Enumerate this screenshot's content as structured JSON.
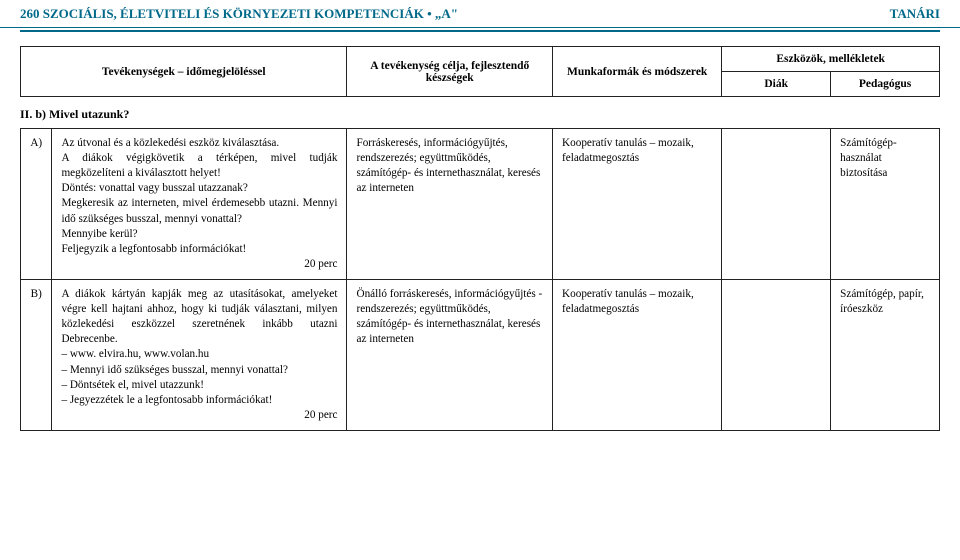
{
  "header": {
    "page_num": "260",
    "title_left": "SZOCIÁLIS, ÉLETVITELI ÉS KÖRNYEZETI KOMPETENCIÁK • „A\"",
    "title_right": "TANÁRI"
  },
  "table_head": {
    "col1": "Tevékenységek – időmegjelöléssel",
    "col2": "A tevékenység célja, fejlesztendő készségek",
    "col3": "Munkaformák és módszerek",
    "col4": "Eszközök, mellékletek",
    "col4a": "Diák",
    "col4b": "Pedagógus"
  },
  "section_title": "II. b) Mivel utazunk?",
  "rows": [
    {
      "label": "A)",
      "activity": "Az útvonal és a közlekedési eszköz kiválasztása.\nA diákok végigkövetik a térképen, mivel tudják megközelíteni a kiválasztott helyet!\nDöntés: vonattal vagy busszal utazzanak?\nMegkeresik az interneten, mivel érdemesebb utazni. Mennyi idő szükséges busszal, mennyi vonattal?\nMennyibe kerül?\nFeljegyzik a legfontosabb információkat!",
      "time": "20 perc",
      "goal": "Forráskeresés, információgyűjtés, rendszerezés; együttműködés, számítógép- és internethasználat, keresés az interneten",
      "methods": "Kooperatív tanulás – mozaik, feladatmegosztás",
      "student": "",
      "teacher": "Számítógép-használat biztosítása"
    },
    {
      "label": "B)",
      "activity": "A diákok kártyán kapják meg az utasításokat, amelyeket végre kell hajtani ahhoz, hogy ki tudják választani, milyen közlekedési eszközzel szeretnének inkább utazni Debrecenbe.\n– www. elvira.hu, www.volan.hu\n– Mennyi idő szükséges busszal, mennyi vonattal?\n– Döntsétek el, mivel utazzunk!\n– Jegyezzétek le a legfontosabb információkat!",
      "time": "20 perc",
      "goal": "Önálló forráskeresés, információgyűjtés -rendszerezés; együttműködés, számítógép- és internethasználat, keresés az interneten",
      "methods": "Kooperatív tanulás – mozaik, feladatmegosztás",
      "student": "",
      "teacher": "Számítógép, papír, íróeszköz"
    }
  ],
  "colors": {
    "accent": "#006989",
    "border": "#222222",
    "bg": "#ffffff"
  },
  "layout": {
    "t1_colwidths": [
      "270",
      "170",
      "140",
      "90",
      "90"
    ],
    "t2_colwidths": [
      "26",
      "244",
      "170",
      "140",
      "90",
      "90"
    ]
  }
}
